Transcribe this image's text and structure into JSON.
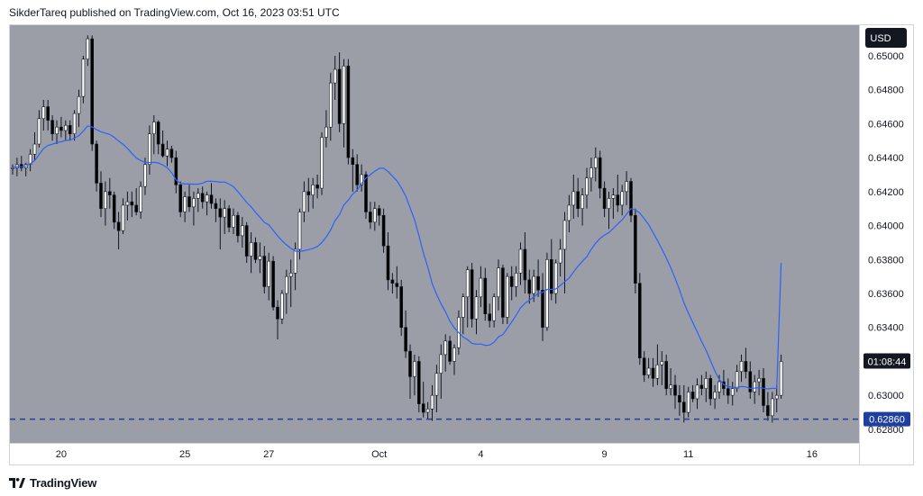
{
  "header": {
    "text": "SikderTareq published on TradingView.com, Oct 16, 2023 03:51 UTC"
  },
  "footer": {
    "brand": "TradingView",
    "logo_icon": "tradingview-logo-icon"
  },
  "colors": {
    "plot_bg": "#9b9ea6",
    "candle_up": "#ffffff",
    "candle_down": "#000000",
    "wick": "#131722",
    "ma_line": "#2962ff",
    "level_line": "#1e3f9e",
    "price_tag_bg": "#131722",
    "level_tag_bg": "#1e3f9e"
  },
  "chart_data": {
    "type": "candlestick",
    "currency_label": "USD",
    "y_ticks": [
      "0.65000",
      "0.64800",
      "0.64600",
      "0.64400",
      "0.64200",
      "0.64000",
      "0.63800",
      "0.63600",
      "0.63400",
      "0.63000",
      "0.62800"
    ],
    "ylim": [
      0.6272,
      0.6518
    ],
    "x_ticks": [
      {
        "label": "20",
        "index": 11
      },
      {
        "label": "25",
        "index": 39
      },
      {
        "label": "27",
        "index": 58
      },
      {
        "label": "Oct",
        "index": 83
      },
      {
        "label": "4",
        "index": 106
      },
      {
        "label": "9",
        "index": 134
      },
      {
        "label": "11",
        "index": 153
      },
      {
        "label": "16",
        "index": 181
      }
    ],
    "countdown": "01:08:44",
    "countdown_price": 0.632,
    "level_price": 0.6286,
    "level_label": "0.62860",
    "ma_window": 20,
    "ma_last": 0.6378,
    "candles": [
      [
        0.6434,
        0.6436,
        0.643,
        0.6434
      ],
      [
        0.6434,
        0.644,
        0.6429,
        0.6436
      ],
      [
        0.6436,
        0.6441,
        0.6432,
        0.6434
      ],
      [
        0.6434,
        0.6437,
        0.6429,
        0.6436
      ],
      [
        0.6436,
        0.6445,
        0.6432,
        0.6442
      ],
      [
        0.6442,
        0.6455,
        0.6438,
        0.6448
      ],
      [
        0.6448,
        0.6468,
        0.6446,
        0.6463
      ],
      [
        0.6463,
        0.6474,
        0.6456,
        0.647
      ],
      [
        0.647,
        0.6474,
        0.6456,
        0.6462
      ],
      [
        0.6462,
        0.6465,
        0.645,
        0.6454
      ],
      [
        0.6454,
        0.6462,
        0.6448,
        0.6458
      ],
      [
        0.6458,
        0.6464,
        0.6452,
        0.6456
      ],
      [
        0.6456,
        0.6462,
        0.645,
        0.6459
      ],
      [
        0.6459,
        0.6462,
        0.645,
        0.6454
      ],
      [
        0.6454,
        0.6468,
        0.645,
        0.6466
      ],
      [
        0.6466,
        0.648,
        0.6458,
        0.6476
      ],
      [
        0.6476,
        0.65,
        0.6472,
        0.6498
      ],
      [
        0.6498,
        0.6512,
        0.6494,
        0.651
      ],
      [
        0.651,
        0.6512,
        0.6444,
        0.6448
      ],
      [
        0.6448,
        0.645,
        0.642,
        0.6425
      ],
      [
        0.6425,
        0.6432,
        0.6405,
        0.641
      ],
      [
        0.641,
        0.6426,
        0.64,
        0.642
      ],
      [
        0.642,
        0.6428,
        0.641,
        0.6418
      ],
      [
        0.6418,
        0.642,
        0.6398,
        0.6402
      ],
      [
        0.6402,
        0.6408,
        0.6386,
        0.6397
      ],
      [
        0.6397,
        0.6416,
        0.6395,
        0.6412
      ],
      [
        0.6412,
        0.642,
        0.6403,
        0.6414
      ],
      [
        0.6414,
        0.642,
        0.6405,
        0.6412
      ],
      [
        0.6412,
        0.6422,
        0.6406,
        0.6408
      ],
      [
        0.6408,
        0.6426,
        0.6404,
        0.6423
      ],
      [
        0.6423,
        0.644,
        0.6418,
        0.6436
      ],
      [
        0.6436,
        0.6459,
        0.643,
        0.6454
      ],
      [
        0.6454,
        0.6465,
        0.6442,
        0.6461
      ],
      [
        0.6461,
        0.6462,
        0.6442,
        0.6448
      ],
      [
        0.6448,
        0.6456,
        0.644,
        0.6441
      ],
      [
        0.6441,
        0.645,
        0.6435,
        0.6445
      ],
      [
        0.6445,
        0.6447,
        0.6437,
        0.644
      ],
      [
        0.644,
        0.6444,
        0.6419,
        0.6424
      ],
      [
        0.6424,
        0.6426,
        0.6405,
        0.6408
      ],
      [
        0.6408,
        0.642,
        0.6402,
        0.6417
      ],
      [
        0.6417,
        0.6424,
        0.6408,
        0.6411
      ],
      [
        0.6411,
        0.642,
        0.64,
        0.6416
      ],
      [
        0.6416,
        0.6422,
        0.6408,
        0.6419
      ],
      [
        0.6419,
        0.6423,
        0.641,
        0.6414
      ],
      [
        0.6414,
        0.642,
        0.6406,
        0.6418
      ],
      [
        0.6418,
        0.6425,
        0.641,
        0.6413
      ],
      [
        0.6413,
        0.6416,
        0.6402,
        0.641
      ],
      [
        0.641,
        0.6416,
        0.6386,
        0.6405
      ],
      [
        0.6405,
        0.6415,
        0.6395,
        0.641
      ],
      [
        0.641,
        0.6412,
        0.6396,
        0.6399
      ],
      [
        0.6399,
        0.641,
        0.6395,
        0.6406
      ],
      [
        0.6406,
        0.6408,
        0.639,
        0.6394
      ],
      [
        0.6394,
        0.6405,
        0.6387,
        0.64
      ],
      [
        0.64,
        0.6402,
        0.6378,
        0.6382
      ],
      [
        0.6382,
        0.6396,
        0.6372,
        0.639
      ],
      [
        0.639,
        0.6393,
        0.6378,
        0.638
      ],
      [
        0.638,
        0.639,
        0.6372,
        0.6382
      ],
      [
        0.6382,
        0.6388,
        0.636,
        0.6364
      ],
      [
        0.6364,
        0.6384,
        0.6356,
        0.6379
      ],
      [
        0.6379,
        0.6382,
        0.635,
        0.6352
      ],
      [
        0.6352,
        0.6356,
        0.6333,
        0.6345
      ],
      [
        0.6345,
        0.6362,
        0.6342,
        0.636
      ],
      [
        0.636,
        0.6374,
        0.6348,
        0.637
      ],
      [
        0.637,
        0.638,
        0.6352,
        0.6372
      ],
      [
        0.6372,
        0.639,
        0.6362,
        0.6386
      ],
      [
        0.6386,
        0.641,
        0.638,
        0.6408
      ],
      [
        0.6408,
        0.6426,
        0.6402,
        0.642
      ],
      [
        0.642,
        0.6428,
        0.6408,
        0.6418
      ],
      [
        0.6418,
        0.6428,
        0.641,
        0.6424
      ],
      [
        0.6424,
        0.643,
        0.6416,
        0.6422
      ],
      [
        0.6422,
        0.6455,
        0.6418,
        0.6452
      ],
      [
        0.6452,
        0.6468,
        0.6446,
        0.6458
      ],
      [
        0.6458,
        0.649,
        0.645,
        0.6484
      ],
      [
        0.6484,
        0.65,
        0.6474,
        0.6492
      ],
      [
        0.6492,
        0.6502,
        0.6455,
        0.646
      ],
      [
        0.646,
        0.6498,
        0.6446,
        0.6494
      ],
      [
        0.6494,
        0.6498,
        0.6436,
        0.644
      ],
      [
        0.644,
        0.6445,
        0.642,
        0.6436
      ],
      [
        0.6436,
        0.6442,
        0.642,
        0.6424
      ],
      [
        0.6424,
        0.6436,
        0.642,
        0.643
      ],
      [
        0.643,
        0.6432,
        0.6404,
        0.6408
      ],
      [
        0.6408,
        0.6414,
        0.6398,
        0.6402
      ],
      [
        0.6402,
        0.6414,
        0.6397,
        0.641
      ],
      [
        0.641,
        0.6412,
        0.64,
        0.6406
      ],
      [
        0.6406,
        0.641,
        0.6384,
        0.6388
      ],
      [
        0.6388,
        0.6396,
        0.6362,
        0.6368
      ],
      [
        0.6368,
        0.6372,
        0.636,
        0.6366
      ],
      [
        0.6366,
        0.6376,
        0.6357,
        0.6364
      ],
      [
        0.6364,
        0.6368,
        0.6335,
        0.634
      ],
      [
        0.634,
        0.635,
        0.6322,
        0.6326
      ],
      [
        0.6326,
        0.633,
        0.6298,
        0.6311
      ],
      [
        0.6311,
        0.6324,
        0.63,
        0.632
      ],
      [
        0.632,
        0.6323,
        0.629,
        0.6295
      ],
      [
        0.6295,
        0.6308,
        0.6287,
        0.629
      ],
      [
        0.629,
        0.6296,
        0.6286,
        0.6292
      ],
      [
        0.6292,
        0.6306,
        0.6285,
        0.63
      ],
      [
        0.63,
        0.6318,
        0.629,
        0.6313
      ],
      [
        0.6313,
        0.633,
        0.6298,
        0.6324
      ],
      [
        0.6324,
        0.6336,
        0.6314,
        0.6332
      ],
      [
        0.6332,
        0.6335,
        0.6318,
        0.632
      ],
      [
        0.632,
        0.633,
        0.6312,
        0.6328
      ],
      [
        0.6328,
        0.635,
        0.6324,
        0.6346
      ],
      [
        0.6346,
        0.636,
        0.6336,
        0.6358
      ],
      [
        0.6358,
        0.6376,
        0.634,
        0.6374
      ],
      [
        0.6374,
        0.6378,
        0.634,
        0.6345
      ],
      [
        0.6345,
        0.6362,
        0.6336,
        0.6358
      ],
      [
        0.6358,
        0.6376,
        0.6352,
        0.6369
      ],
      [
        0.6369,
        0.6375,
        0.6344,
        0.6348
      ],
      [
        0.6348,
        0.6354,
        0.634,
        0.6344
      ],
      [
        0.6344,
        0.636,
        0.634,
        0.6358
      ],
      [
        0.6358,
        0.638,
        0.635,
        0.6375
      ],
      [
        0.6375,
        0.6377,
        0.6342,
        0.6346
      ],
      [
        0.6346,
        0.6372,
        0.6342,
        0.637
      ],
      [
        0.637,
        0.6376,
        0.6356,
        0.6364
      ],
      [
        0.6364,
        0.6376,
        0.6358,
        0.6372
      ],
      [
        0.6372,
        0.639,
        0.6365,
        0.6386
      ],
      [
        0.6386,
        0.6396,
        0.636,
        0.6368
      ],
      [
        0.6368,
        0.6374,
        0.6354,
        0.636
      ],
      [
        0.636,
        0.6374,
        0.6355,
        0.637
      ],
      [
        0.637,
        0.638,
        0.6358,
        0.6362
      ],
      [
        0.6362,
        0.6372,
        0.6332,
        0.634
      ],
      [
        0.634,
        0.6384,
        0.6338,
        0.638
      ],
      [
        0.638,
        0.6392,
        0.6356,
        0.636
      ],
      [
        0.636,
        0.638,
        0.6354,
        0.6378
      ],
      [
        0.6378,
        0.6392,
        0.637,
        0.6386
      ],
      [
        0.6386,
        0.6408,
        0.636,
        0.6403
      ],
      [
        0.6403,
        0.6418,
        0.6396,
        0.6412
      ],
      [
        0.6412,
        0.643,
        0.6404,
        0.642
      ],
      [
        0.642,
        0.6428,
        0.6405,
        0.641
      ],
      [
        0.641,
        0.6422,
        0.64,
        0.6418
      ],
      [
        0.6418,
        0.6434,
        0.641,
        0.6428
      ],
      [
        0.6428,
        0.644,
        0.642,
        0.6434
      ],
      [
        0.6434,
        0.6446,
        0.6426,
        0.644
      ],
      [
        0.644,
        0.6444,
        0.6416,
        0.6422
      ],
      [
        0.6422,
        0.6426,
        0.6405,
        0.641
      ],
      [
        0.641,
        0.642,
        0.6398,
        0.6416
      ],
      [
        0.6416,
        0.6422,
        0.6404,
        0.6418
      ],
      [
        0.6418,
        0.643,
        0.6408,
        0.6412
      ],
      [
        0.6412,
        0.6424,
        0.6406,
        0.642
      ],
      [
        0.642,
        0.6432,
        0.6412,
        0.6426
      ],
      [
        0.6426,
        0.6428,
        0.6402,
        0.6406
      ],
      [
        0.6406,
        0.641,
        0.636,
        0.6366
      ],
      [
        0.6366,
        0.6372,
        0.6318,
        0.6322
      ],
      [
        0.6322,
        0.6326,
        0.6308,
        0.6312
      ],
      [
        0.6312,
        0.6322,
        0.631,
        0.6316
      ],
      [
        0.6316,
        0.6322,
        0.6305,
        0.631
      ],
      [
        0.631,
        0.633,
        0.6306,
        0.6318
      ],
      [
        0.6318,
        0.6326,
        0.6306,
        0.632
      ],
      [
        0.632,
        0.6324,
        0.63,
        0.6304
      ],
      [
        0.6304,
        0.6316,
        0.63,
        0.6306
      ],
      [
        0.6306,
        0.6312,
        0.6292,
        0.63
      ],
      [
        0.63,
        0.6306,
        0.6288,
        0.6296
      ],
      [
        0.6296,
        0.6306,
        0.6284,
        0.629
      ],
      [
        0.629,
        0.6305,
        0.6287,
        0.6302
      ],
      [
        0.6302,
        0.6306,
        0.6296,
        0.6298
      ],
      [
        0.6298,
        0.631,
        0.6292,
        0.6306
      ],
      [
        0.6306,
        0.6312,
        0.63,
        0.6304
      ],
      [
        0.6304,
        0.6314,
        0.6296,
        0.631
      ],
      [
        0.631,
        0.6312,
        0.6294,
        0.6298
      ],
      [
        0.6298,
        0.6306,
        0.6292,
        0.6302
      ],
      [
        0.6302,
        0.6312,
        0.6298,
        0.6308
      ],
      [
        0.6308,
        0.6315,
        0.63,
        0.6304
      ],
      [
        0.6304,
        0.631,
        0.6295,
        0.63
      ],
      [
        0.63,
        0.6308,
        0.6294,
        0.6304
      ],
      [
        0.6304,
        0.6318,
        0.6302,
        0.6314
      ],
      [
        0.6314,
        0.6324,
        0.6308,
        0.632
      ],
      [
        0.632,
        0.6328,
        0.631,
        0.6314
      ],
      [
        0.6314,
        0.632,
        0.6298,
        0.6302
      ],
      [
        0.6302,
        0.6312,
        0.6295,
        0.6308
      ],
      [
        0.6308,
        0.6315,
        0.63,
        0.631
      ],
      [
        0.631,
        0.6316,
        0.629,
        0.6294
      ],
      [
        0.6294,
        0.6302,
        0.6285,
        0.6288
      ],
      [
        0.6288,
        0.6302,
        0.6284,
        0.6298
      ],
      [
        0.6298,
        0.6306,
        0.629,
        0.63
      ],
      [
        0.63,
        0.6324,
        0.6298,
        0.632
      ]
    ]
  }
}
